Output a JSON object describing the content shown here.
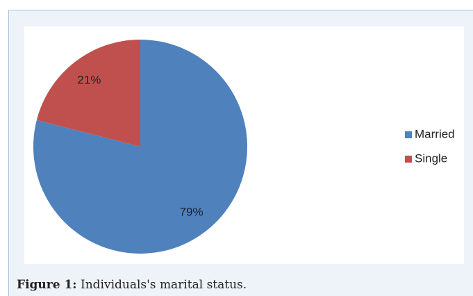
{
  "chart_data": {
    "type": "pie",
    "categories": [
      "Married",
      "Single"
    ],
    "values": [
      79,
      21
    ],
    "value_labels": [
      "79%",
      "21%"
    ],
    "colors": [
      "#4f81bd",
      "#c0504d"
    ],
    "legend": "right"
  },
  "caption": {
    "label": "Figure 1:",
    "text": "Individuals's marital status."
  }
}
